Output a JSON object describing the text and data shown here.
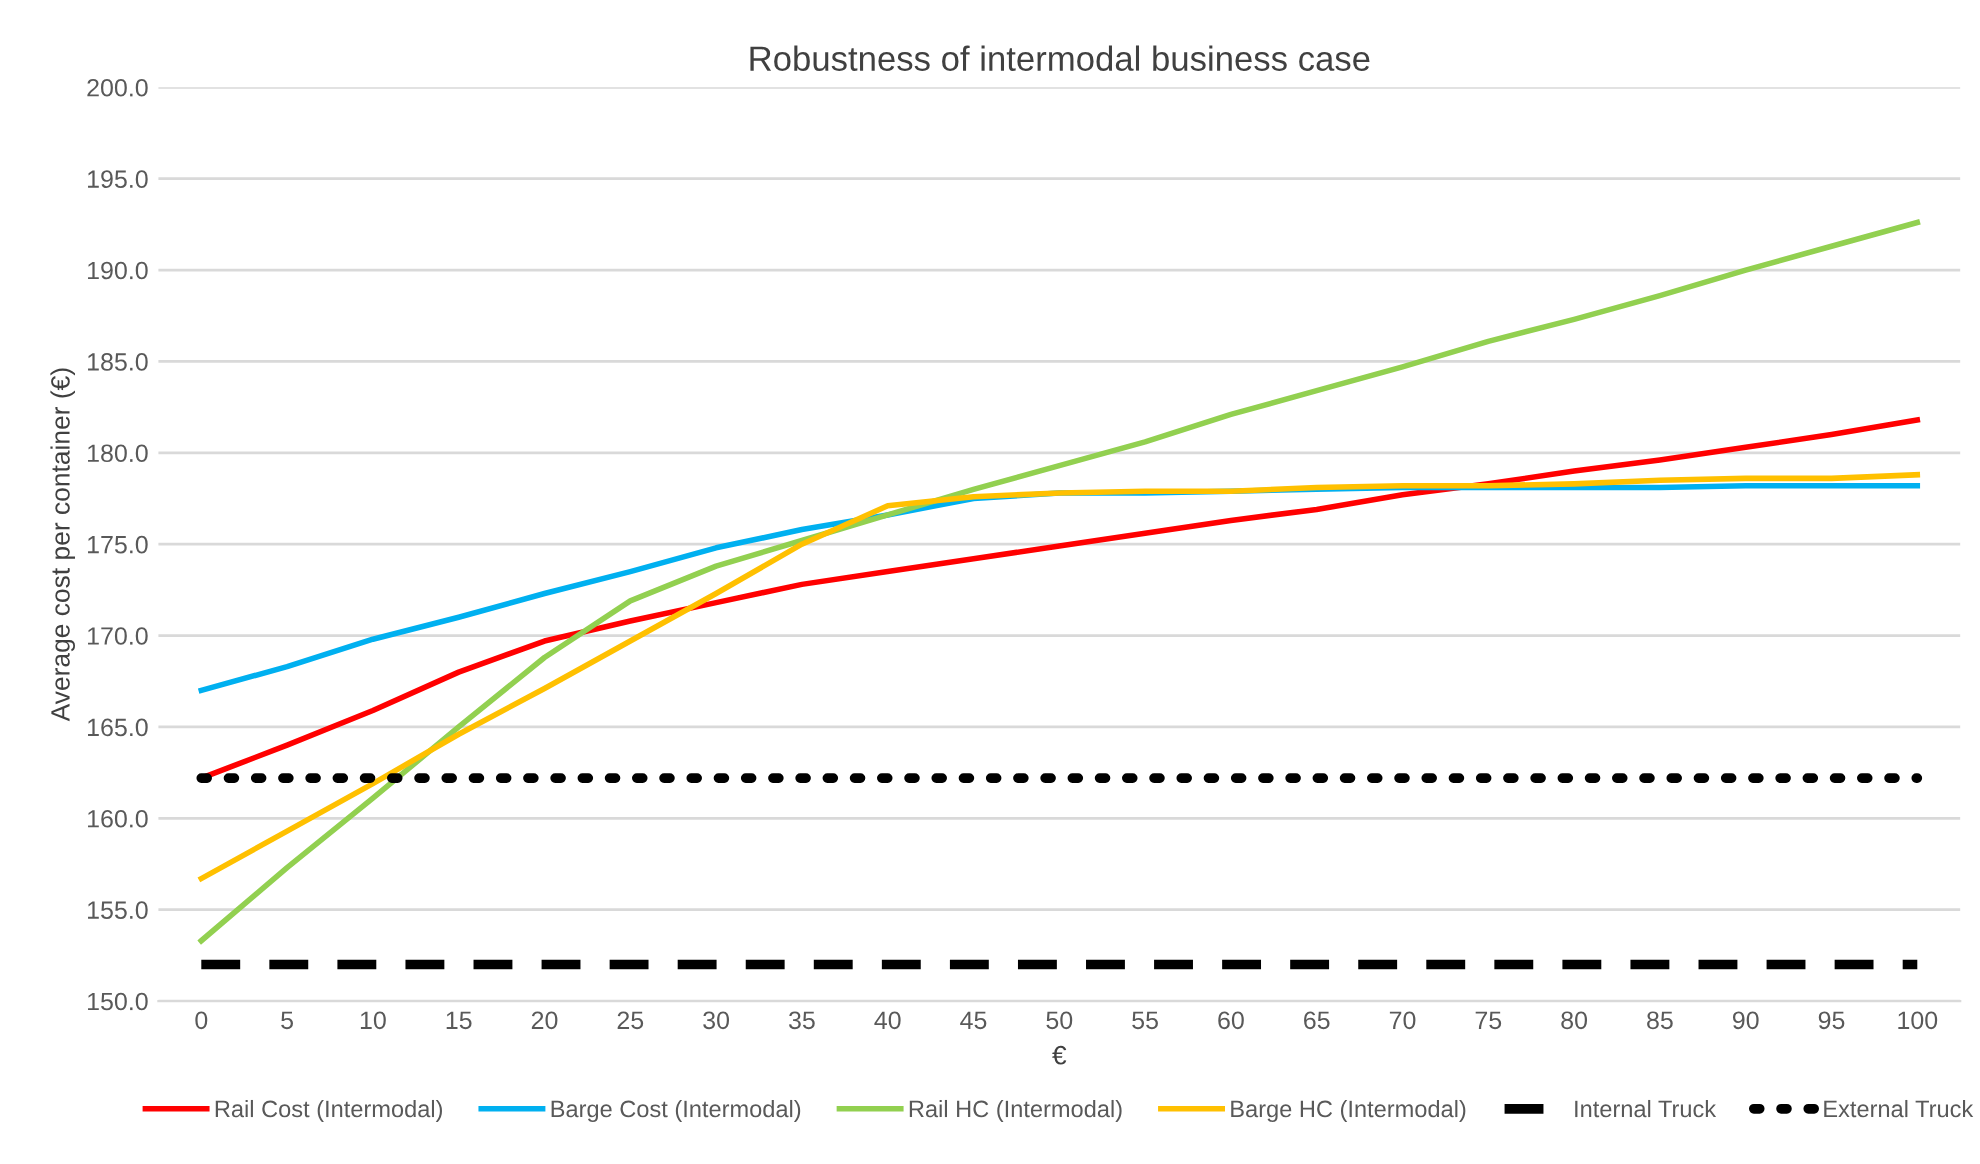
{
  "chart_data": {
    "type": "line",
    "title": "Robustness of intermodal business case",
    "xlabel": "€",
    "ylabel": "Average cost per container (€)",
    "categories": [
      "0",
      "5",
      "10",
      "15",
      "20",
      "25",
      "30",
      "35",
      "40",
      "45",
      "50",
      "55",
      "60",
      "65",
      "70",
      "75",
      "80",
      "85",
      "90",
      "95",
      "100"
    ],
    "series": [
      {
        "name": "Rail Cost (Intermodal)",
        "color": "#ff0000",
        "line_style": "solid",
        "values": [
          162.2,
          164.0,
          165.9,
          168.0,
          169.7,
          170.8,
          171.8,
          172.8,
          173.5,
          174.2,
          174.9,
          175.6,
          176.3,
          176.9,
          177.7,
          178.3,
          179.0,
          179.6,
          180.3,
          181.0,
          181.8
        ]
      },
      {
        "name": "Barge Cost (Intermodal)",
        "color": "#00b0f0",
        "line_style": "solid",
        "values": [
          167.0,
          168.3,
          169.8,
          171.0,
          172.3,
          173.5,
          174.8,
          175.8,
          176.6,
          177.5,
          177.8,
          177.8,
          177.9,
          178.0,
          178.1,
          178.1,
          178.1,
          178.1,
          178.2,
          178.2,
          178.2
        ]
      },
      {
        "name": "Rail HC (Intermodal)",
        "color": "#92d050",
        "line_style": "solid",
        "values": [
          153.3,
          157.3,
          161.1,
          165.0,
          168.8,
          171.9,
          173.8,
          175.2,
          176.6,
          178.0,
          179.3,
          180.6,
          182.1,
          183.4,
          184.7,
          186.1,
          187.3,
          188.6,
          190.0,
          191.3,
          192.6
        ]
      },
      {
        "name": "Barge HC (Intermodal)",
        "color": "#ffc000",
        "line_style": "solid",
        "values": [
          156.7,
          159.3,
          161.9,
          164.6,
          167.1,
          169.7,
          172.3,
          175.0,
          177.1,
          177.6,
          177.8,
          177.9,
          177.9,
          178.1,
          178.2,
          178.2,
          178.3,
          178.5,
          178.6,
          178.6,
          178.8
        ]
      },
      {
        "name": "Internal Truck",
        "color": "#000000",
        "line_style": "dashed",
        "values": [
          152.0,
          152.0,
          152.0,
          152.0,
          152.0,
          152.0,
          152.0,
          152.0,
          152.0,
          152.0,
          152.0,
          152.0,
          152.0,
          152.0,
          152.0,
          152.0,
          152.0,
          152.0,
          152.0,
          152.0,
          152.0
        ]
      },
      {
        "name": "External Truck",
        "color": "#000000",
        "line_style": "dotted",
        "values": [
          162.2,
          162.2,
          162.2,
          162.2,
          162.2,
          162.2,
          162.2,
          162.2,
          162.2,
          162.2,
          162.2,
          162.2,
          162.2,
          162.2,
          162.2,
          162.2,
          162.2,
          162.2,
          162.2,
          162.2,
          162.2
        ]
      }
    ],
    "ylim": [
      150,
      200
    ],
    "yticks": [
      {
        "value": 150,
        "label": "150.0"
      },
      {
        "value": 155,
        "label": "155.0"
      },
      {
        "value": 160,
        "label": "160.0"
      },
      {
        "value": 165,
        "label": "165.0"
      },
      {
        "value": 170,
        "label": "170.0"
      },
      {
        "value": 175,
        "label": "175.0"
      },
      {
        "value": 180,
        "label": "180.0"
      },
      {
        "value": 185,
        "label": "185.0"
      },
      {
        "value": 190,
        "label": "190.0"
      },
      {
        "value": 195,
        "label": "195.0"
      },
      {
        "value": 200,
        "label": "200.0"
      }
    ],
    "grid": "y",
    "legend": "bottom",
    "marker": "none"
  }
}
